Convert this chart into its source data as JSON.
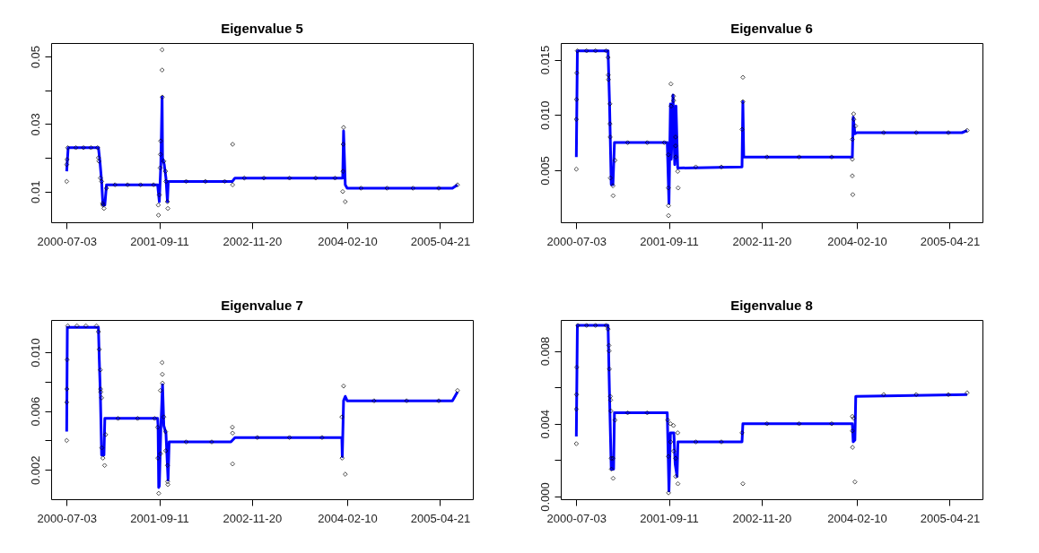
{
  "chart_data": [
    {
      "type": "line",
      "title": "Eigenvalue 5",
      "xlim": [
        "2000-04-21",
        "2005-09-22"
      ],
      "xticks": [
        "2000-07-03",
        "2001-09-11",
        "2002-11-20",
        "2004-02-10",
        "2005-04-21"
      ],
      "ylim": [
        0.0009,
        0.054
      ],
      "yticks": [
        {
          "value": 0.01,
          "label": "0.01"
        },
        {
          "value": 0.02,
          "label": null
        },
        {
          "value": 0.03,
          "label": "0.03"
        },
        {
          "value": 0.04,
          "label": null
        },
        {
          "value": 0.05,
          "label": "0.05"
        }
      ],
      "series": [
        {
          "type": "scatter",
          "color": "#000000",
          "marker": "diamond",
          "x": [
            "2000-07-03",
            "2000-07-03",
            "2000-07-05",
            "2000-07-08",
            "2000-08-15",
            "2000-09-20",
            "2000-10-25",
            "2000-11-25",
            "2000-11-29",
            "2000-12-01",
            "2000-12-08",
            "2000-12-14",
            "2000-12-18",
            "2000-12-20",
            "2000-12-25",
            "2001-01-06",
            "2001-02-15",
            "2001-04-15",
            "2001-06-15",
            "2001-08-15",
            "2001-09-06",
            "2001-09-07",
            "2001-09-11",
            "2001-09-15",
            "2001-09-16",
            "2001-09-17",
            "2001-09-24",
            "2001-09-24",
            "2001-09-25",
            "2001-10-02",
            "2001-10-10",
            "2001-10-12",
            "2001-10-19",
            "2001-10-21",
            "2002-01-15",
            "2002-04-15",
            "2002-07-15",
            "2002-08-21",
            "2002-08-21",
            "2002-10-15",
            "2003-01-15",
            "2003-05-15",
            "2003-09-15",
            "2003-12-15",
            "2004-01-20",
            "2004-01-21",
            "2004-01-22",
            "2004-01-24",
            "2004-02-01",
            "2004-04-15",
            "2004-08-15",
            "2004-12-15",
            "2005-04-15",
            "2005-07-12"
          ],
          "values": [
            0.013,
            0.018,
            0.0195,
            0.023,
            0.023,
            0.023,
            0.023,
            0.023,
            0.02,
            0.019,
            0.014,
            0.013,
            0.0065,
            0.006,
            0.005,
            0.011,
            0.012,
            0.012,
            0.012,
            0.012,
            0.006,
            0.003,
            0.009,
            0.017,
            0.021,
            0.025,
            0.052,
            0.046,
            0.038,
            0.019,
            0.016,
            0.013,
            0.007,
            0.005,
            0.013,
            0.013,
            0.013,
            0.024,
            0.012,
            0.014,
            0.014,
            0.014,
            0.014,
            0.014,
            0.01,
            0.016,
            0.024,
            0.029,
            0.007,
            0.011,
            0.011,
            0.011,
            0.011,
            0.012
          ]
        },
        {
          "type": "line",
          "color": "#0000ff",
          "x": [
            "2000-07-03",
            "2000-07-10",
            "2000-11-29",
            "2000-12-06",
            "2000-12-14",
            "2000-12-20",
            "2000-12-29",
            "2001-01-06",
            "2001-09-03",
            "2001-09-11",
            "2001-09-18",
            "2001-09-24",
            "2001-09-26",
            "2001-10-04",
            "2001-10-12",
            "2001-10-19",
            "2001-10-23",
            "2002-08-20",
            "2002-09-01",
            "2004-01-20",
            "2004-01-24",
            "2004-02-01",
            "2004-02-10",
            "2005-06-18",
            "2005-07-12"
          ],
          "values": [
            0.016,
            0.023,
            0.023,
            0.019,
            0.013,
            0.006,
            0.006,
            0.012,
            0.012,
            0.007,
            0.018,
            0.038,
            0.02,
            0.018,
            0.014,
            0.007,
            0.013,
            0.013,
            0.014,
            0.014,
            0.028,
            0.012,
            0.011,
            0.011,
            0.012
          ]
        }
      ]
    },
    {
      "type": "line",
      "title": "Eigenvalue 6",
      "xlim": [
        "2000-04-21",
        "2005-09-22"
      ],
      "xticks": [
        "2000-07-03",
        "2001-09-11",
        "2002-11-20",
        "2004-02-10",
        "2005-04-21"
      ],
      "ylim": [
        0.0003,
        0.0165
      ],
      "yticks": [
        {
          "value": 0.005,
          "label": "0.005"
        },
        {
          "value": 0.01,
          "label": "0.010"
        },
        {
          "value": 0.015,
          "label": "0.015"
        }
      ],
      "series": [
        {
          "type": "scatter",
          "color": "#000000",
          "marker": "diamond",
          "x": [
            "2000-07-03",
            "2000-07-03",
            "2000-07-04",
            "2000-07-05",
            "2000-07-08",
            "2000-08-20",
            "2000-10-01",
            "2000-11-20",
            "2000-11-29",
            "2000-11-30",
            "2000-12-01",
            "2000-12-08",
            "2000-12-08",
            "2000-12-09",
            "2000-12-10",
            "2000-12-22",
            "2000-12-23",
            "2001-01-01",
            "2001-03-01",
            "2001-06-01",
            "2001-08-20",
            "2001-09-08",
            "2001-09-08",
            "2001-09-09",
            "2001-09-09",
            "2001-09-20",
            "2001-09-21",
            "2001-10-02",
            "2001-10-03",
            "2001-10-12",
            "2001-10-12",
            "2001-10-13",
            "2001-10-22",
            "2001-10-24",
            "2002-01-15",
            "2002-05-15",
            "2002-08-20",
            "2002-08-24",
            "2002-08-24",
            "2002-12-15",
            "2003-05-15",
            "2003-10-15",
            "2004-01-20",
            "2004-01-20",
            "2004-01-20",
            "2004-01-22",
            "2004-01-26",
            "2004-01-27",
            "2004-02-04",
            "2004-06-15",
            "2004-11-15",
            "2005-04-15",
            "2005-07-12"
          ],
          "values": [
            0.0051,
            0.0096,
            0.0114,
            0.0138,
            0.0158,
            0.0158,
            0.0158,
            0.0158,
            0.0152,
            0.0136,
            0.0132,
            0.011,
            0.0092,
            0.008,
            0.0043,
            0.0036,
            0.0027,
            0.0059,
            0.0075,
            0.0075,
            0.0075,
            0.0064,
            0.0034,
            0.0018,
            0.0009,
            0.0128,
            0.0108,
            0.0117,
            0.0113,
            0.008,
            0.0072,
            0.0062,
            0.0049,
            0.0034,
            0.0053,
            0.0053,
            0.0087,
            0.0134,
            0.0112,
            0.0062,
            0.0062,
            0.0062,
            0.0078,
            0.006,
            0.0045,
            0.0028,
            0.0101,
            0.0096,
            0.009,
            0.0084,
            0.0084,
            0.0084,
            0.0086
          ]
        },
        {
          "type": "line",
          "color": "#0000ff",
          "x": [
            "2000-07-03",
            "2000-07-08",
            "2000-11-29",
            "2000-12-06",
            "2000-12-14",
            "2000-12-22",
            "2000-12-29",
            "2001-09-03",
            "2001-09-11",
            "2001-09-18",
            "2001-09-22",
            "2001-09-30",
            "2001-10-08",
            "2001-10-14",
            "2001-10-22",
            "2002-08-20",
            "2002-08-24",
            "2002-08-28",
            "2004-01-20",
            "2004-01-24",
            "2004-02-01",
            "2004-02-10",
            "2005-06-18",
            "2005-07-12"
          ],
          "values": [
            0.0062,
            0.0158,
            0.0158,
            0.011,
            0.0037,
            0.0037,
            0.0075,
            0.0075,
            0.002,
            0.011,
            0.006,
            0.0118,
            0.0055,
            0.0108,
            0.0052,
            0.0053,
            0.0112,
            0.0062,
            0.0062,
            0.0098,
            0.0083,
            0.0084,
            0.0084,
            0.0086
          ]
        }
      ]
    },
    {
      "type": "line",
      "title": "Eigenvalue 7",
      "xlim": [
        "2000-04-21",
        "2005-09-22"
      ],
      "xticks": [
        "2000-07-03",
        "2001-09-11",
        "2002-11-20",
        "2004-02-10",
        "2005-04-21"
      ],
      "ylim": [
        0,
        0.0122
      ],
      "yticks": [
        {
          "value": 0.002,
          "label": "0.002"
        },
        {
          "value": 0.004,
          "label": null
        },
        {
          "value": 0.006,
          "label": "0.006"
        },
        {
          "value": 0.008,
          "label": null
        },
        {
          "value": 0.01,
          "label": "0.010"
        }
      ],
      "series": [
        {
          "type": "scatter",
          "color": "#000000",
          "marker": "diamond",
          "x": [
            "2000-07-03",
            "2000-07-03",
            "2000-07-04",
            "2000-07-05",
            "2000-07-08",
            "2000-08-20",
            "2000-10-01",
            "2000-11-20",
            "2000-11-29",
            "2000-12-03",
            "2000-12-08",
            "2000-12-09",
            "2000-12-10",
            "2000-12-14",
            "2000-12-15",
            "2000-12-20",
            "2000-12-28",
            "2001-01-02",
            "2001-03-01",
            "2001-06-01",
            "2001-08-20",
            "2001-09-03",
            "2001-09-04",
            "2001-09-08",
            "2001-09-16",
            "2001-09-17",
            "2001-09-24",
            "2001-09-25",
            "2001-09-26",
            "2001-10-02",
            "2001-10-10",
            "2001-10-11",
            "2001-10-19",
            "2001-10-20",
            "2001-10-21",
            "2002-01-15",
            "2002-05-15",
            "2002-08-20",
            "2002-08-21",
            "2002-08-21",
            "2002-12-15",
            "2003-05-15",
            "2003-10-15",
            "2004-01-16",
            "2004-01-17",
            "2004-01-24",
            "2004-02-01",
            "2004-06-15",
            "2004-11-15",
            "2005-04-15",
            "2005-07-12"
          ],
          "values": [
            0.004,
            0.0066,
            0.0075,
            0.0095,
            0.0118,
            0.0118,
            0.0118,
            0.0118,
            0.0114,
            0.0102,
            0.0088,
            0.0075,
            0.0073,
            0.0069,
            0.0035,
            0.0028,
            0.0023,
            0.0044,
            0.0055,
            0.0055,
            0.0055,
            0.0049,
            0.0028,
            0.0004,
            0.0074,
            0.0031,
            0.0093,
            0.0085,
            0.0079,
            0.0056,
            0.0046,
            0.0033,
            0.0023,
            0.0012,
            0.001,
            0.0039,
            0.0039,
            0.0049,
            0.0045,
            0.0024,
            0.0042,
            0.0042,
            0.0042,
            0.0056,
            0.0028,
            0.0077,
            0.0017,
            0.0067,
            0.0067,
            0.0067,
            0.0074
          ]
        },
        {
          "type": "line",
          "color": "#0000ff",
          "x": [
            "2000-07-03",
            "2000-07-06",
            "2000-11-29",
            "2000-12-03",
            "2000-12-08",
            "2000-12-14",
            "2000-12-25",
            "2000-12-29",
            "2001-09-03",
            "2001-09-05",
            "2001-09-08",
            "2001-09-11",
            "2001-09-18",
            "2001-09-26",
            "2001-10-02",
            "2001-10-12",
            "2001-10-22",
            "2001-10-27",
            "2002-08-13",
            "2002-09-01",
            "2004-01-16",
            "2004-01-18",
            "2004-01-24",
            "2004-02-01",
            "2004-02-10",
            "2005-06-18",
            "2005-07-12"
          ],
          "values": [
            0.0046,
            0.0117,
            0.0117,
            0.0095,
            0.0072,
            0.003,
            0.003,
            0.0055,
            0.0055,
            0.005,
            0.0008,
            0.0009,
            0.0048,
            0.0078,
            0.005,
            0.0045,
            0.0013,
            0.0039,
            0.0039,
            0.0042,
            0.0042,
            0.0029,
            0.0067,
            0.007,
            0.0067,
            0.0067,
            0.0073
          ]
        }
      ]
    },
    {
      "type": "line",
      "title": "Eigenvalue 8",
      "xlim": [
        "2000-04-21",
        "2005-09-22"
      ],
      "xticks": [
        "2000-07-03",
        "2001-09-11",
        "2002-11-20",
        "2004-02-10",
        "2005-04-21"
      ],
      "ylim": [
        -0.00015,
        0.0097
      ],
      "yticks": [
        {
          "value": 0,
          "label": "0.000"
        },
        {
          "value": 0.002,
          "label": null
        },
        {
          "value": 0.004,
          "label": "0.004"
        },
        {
          "value": 0.006,
          "label": null
        },
        {
          "value": 0.008,
          "label": "0.008"
        }
      ],
      "series": [
        {
          "type": "scatter",
          "color": "#000000",
          "marker": "diamond",
          "x": [
            "2000-07-03",
            "2000-07-03",
            "2000-07-04",
            "2000-07-05",
            "2000-07-10",
            "2000-08-20",
            "2000-10-01",
            "2000-11-20",
            "2000-11-29",
            "2000-12-03",
            "2000-12-04",
            "2000-12-05",
            "2000-12-10",
            "2000-12-11",
            "2000-12-12",
            "2000-12-14",
            "2000-12-15",
            "2000-12-22",
            "2000-12-23",
            "2001-01-01",
            "2001-03-01",
            "2001-06-01",
            "2001-09-05",
            "2001-09-08",
            "2001-09-09",
            "2001-09-18",
            "2001-09-19",
            "2001-10-02",
            "2001-10-03",
            "2001-10-12",
            "2001-10-13",
            "2001-10-22",
            "2001-10-23",
            "2002-01-15",
            "2002-05-15",
            "2002-08-20",
            "2002-08-24",
            "2002-12-15",
            "2003-05-15",
            "2003-10-15",
            "2004-01-20",
            "2004-01-20",
            "2004-01-21",
            "2004-01-26",
            "2004-02-01",
            "2004-06-15",
            "2004-11-15",
            "2005-04-15",
            "2005-07-12"
          ],
          "values": [
            0.0029,
            0.0048,
            0.0056,
            0.0071,
            0.0094,
            0.0094,
            0.0094,
            0.0094,
            0.0092,
            0.0083,
            0.008,
            0.007,
            0.0055,
            0.0053,
            0.0047,
            0.0021,
            0.0015,
            0.0021,
            0.001,
            0.0042,
            0.0046,
            0.0046,
            0.0042,
            0.0022,
            0.0002,
            0.004,
            0.003,
            0.0039,
            0.0025,
            0.0021,
            0.0011,
            0.0035,
            0.0007,
            0.003,
            0.003,
            0.0035,
            0.0007,
            0.004,
            0.004,
            0.004,
            0.0044,
            0.0036,
            0.0027,
            0.0043,
            0.0008,
            0.0056,
            0.0056,
            0.0056,
            0.0057
          ]
        },
        {
          "type": "line",
          "color": "#0000ff",
          "x": [
            "2000-07-03",
            "2000-07-08",
            "2000-11-29",
            "2000-12-06",
            "2000-12-14",
            "2000-12-25",
            "2000-12-29",
            "2001-09-03",
            "2001-09-11",
            "2001-09-18",
            "2001-10-04",
            "2001-10-10",
            "2001-10-19",
            "2001-10-23",
            "2002-08-20",
            "2002-08-24",
            "2004-01-20",
            "2004-01-24",
            "2004-02-01",
            "2004-02-05",
            "2005-07-12"
          ],
          "values": [
            0.0033,
            0.0094,
            0.0094,
            0.0055,
            0.0015,
            0.0015,
            0.0046,
            0.0046,
            0.0003,
            0.0035,
            0.0035,
            0.0018,
            0.0011,
            0.003,
            0.003,
            0.004,
            0.004,
            0.003,
            0.0031,
            0.0055,
            0.0056
          ]
        }
      ]
    }
  ]
}
